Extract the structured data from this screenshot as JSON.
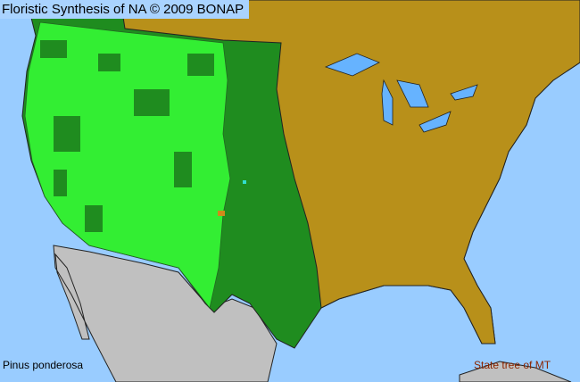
{
  "map": {
    "title": "Floristic Synthesis of NA © 2009 BONAP",
    "species": "Pinus ponderosa",
    "note": "State tree of MT",
    "colors": {
      "ocean": "#99ccff",
      "present_native": "#1f8c1f",
      "present_county": "#33ff33",
      "absent": "#b8901a",
      "outside_area": "#c0c0c0",
      "lakes": "#66b3ff",
      "borders": "#333333"
    }
  }
}
